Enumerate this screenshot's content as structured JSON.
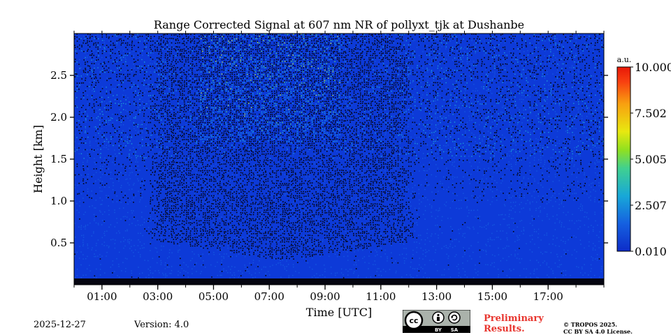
{
  "chart_data": {
    "type": "heatmap",
    "title": "Range Corrected Signal at 607 nm NR of pollyxt_tjk at Dushanbe",
    "xlabel": "Time [UTC]",
    "ylabel": "Height [km]",
    "xlim_hours": [
      0,
      19
    ],
    "ylim_km": [
      0,
      3.0
    ],
    "xticks": [
      {
        "hour": 1,
        "label": "01:00"
      },
      {
        "hour": 3,
        "label": "03:00"
      },
      {
        "hour": 5,
        "label": "05:00"
      },
      {
        "hour": 7,
        "label": "07:00"
      },
      {
        "hour": 9,
        "label": "09:00"
      },
      {
        "hour": 11,
        "label": "11:00"
      },
      {
        "hour": 13,
        "label": "13:00"
      },
      {
        "hour": 15,
        "label": "15:00"
      },
      {
        "hour": 17,
        "label": "17:00"
      }
    ],
    "yticks": [
      {
        "value": 0.5,
        "label": "0.5"
      },
      {
        "value": 1.0,
        "label": "1.0"
      },
      {
        "value": 1.5,
        "label": "1.5"
      },
      {
        "value": 2.0,
        "label": "2.0"
      },
      {
        "value": 2.5,
        "label": "2.5"
      }
    ],
    "colorbar": {
      "unit": "a.u.",
      "min": 0.01,
      "max": 10.0,
      "ticks": [
        {
          "value": 0.01,
          "label": "0.010"
        },
        {
          "value": 2.507,
          "label": "2.507"
        },
        {
          "value": 5.005,
          "label": "5.005"
        },
        {
          "value": 7.502,
          "label": "7.502"
        },
        {
          "value": 10.0,
          "label": "10.000"
        }
      ],
      "colormap": [
        "#0d2cc8",
        "#1560e0",
        "#18a8d8",
        "#40d090",
        "#90e020",
        "#e8e810",
        "#f8a010",
        "#f84010",
        "#e81808"
      ]
    },
    "noise_region": {
      "start_hour": 2.5,
      "end_hour": 12.3,
      "bottom_km": 0.3
    },
    "signal_max_region": {
      "start_hour": 4.5,
      "end_hour": 9.5,
      "peak_km": 2.9
    }
  },
  "footer": {
    "date": "2025-12-27",
    "version": "Version: 4.0",
    "preliminary_line1": "Preliminary",
    "preliminary_line2": "Results.",
    "copyright_line1": "© TROPOS 2025.",
    "copyright_line2": "CC BY SA 4.0 License.",
    "license_badge": {
      "cc": "cc",
      "by": "BY",
      "sa": "SA"
    }
  }
}
